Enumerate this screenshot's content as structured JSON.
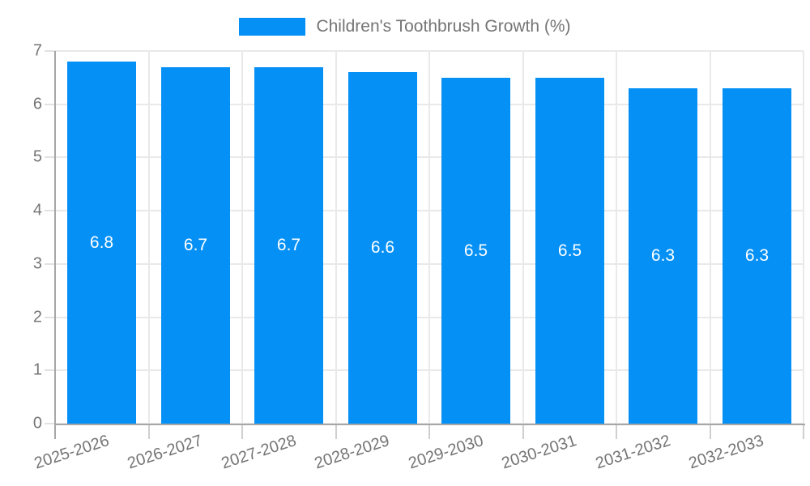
{
  "chart_data": {
    "type": "bar",
    "title": "Children's Toothbrush Growth (%)",
    "categories": [
      "2025-2026",
      "2026-2027",
      "2027-2028",
      "2028-2029",
      "2029-2030",
      "2030-2031",
      "2031-2032",
      "2032-2033"
    ],
    "series": [
      {
        "name": "Children's Toothbrush Growth (%)",
        "values": [
          6.8,
          6.7,
          6.7,
          6.6,
          6.5,
          6.5,
          6.3,
          6.3
        ]
      }
    ],
    "value_labels": [
      "6.8",
      "6.7",
      "6.7",
      "6.6",
      "6.5",
      "6.5",
      "6.3",
      "6.3"
    ],
    "xlabel": "",
    "ylabel": "",
    "ylim": [
      0,
      7
    ],
    "yticks": [
      "0",
      "1",
      "2",
      "3",
      "4",
      "5",
      "6",
      "7"
    ],
    "grid": "on",
    "legend_position": "top-center",
    "colors": {
      "bar": "#0590f5",
      "grid_line": "#e9e9e9",
      "axis_line": "#a6a6a6",
      "tick_text": "#757575",
      "bar_label_text": "#ffffff",
      "background": "#ffffff"
    }
  }
}
